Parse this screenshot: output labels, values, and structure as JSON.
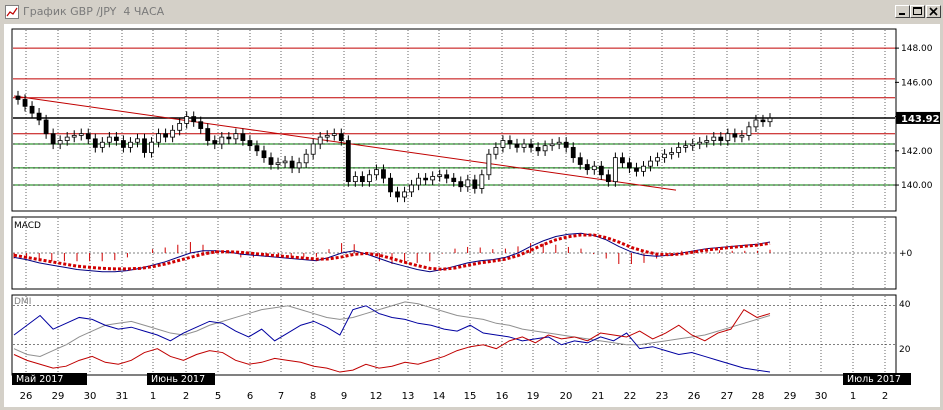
{
  "window": {
    "title": "График GBP /JPY  4 ЧАСА",
    "icons": {
      "app": "chart-app-icon",
      "minimize": "minimize-icon",
      "maximize": "maximize-icon",
      "close": "close-icon"
    }
  },
  "price_panel": {
    "price_labels": [
      "148.00",
      "146.00",
      "144.00",
      "142.00",
      "140.00"
    ],
    "current_price": "143.92",
    "colors": {
      "up": "#000000",
      "down": "#000000",
      "trendline": "#c00000",
      "h_red": "#c00000",
      "h_green": "#008000",
      "current_line": "#000000"
    }
  },
  "macd_panel": {
    "label": "MACD",
    "zero_label": "+0",
    "colors": {
      "line": "#000080",
      "signal": "#d00000",
      "hist": "#d00000"
    }
  },
  "dmi_panel": {
    "label": "DMI",
    "levels": [
      "40",
      "20"
    ],
    "colors": {
      "plus": "#c00000",
      "minus": "#0000a0",
      "adx": "#909090"
    }
  },
  "axis": {
    "dates": [
      "26",
      "29",
      "30",
      "31",
      "1",
      "2",
      "5",
      "6",
      "7",
      "8",
      "9",
      "12",
      "13",
      "14",
      "15",
      "16",
      "19",
      "20",
      "21",
      "22",
      "23",
      "26",
      "27",
      "28",
      "29",
      "30",
      "1",
      "2"
    ],
    "month_labels": [
      "Май 2017",
      "Июнь 2017",
      "Июль 2017"
    ]
  },
  "chart_data": {
    "type": "candlestick",
    "title": "График GBP /JPY  4 ЧАСА",
    "ylim": [
      138.6,
      149.0
    ],
    "yticks": [
      148,
      146,
      144,
      142,
      140
    ],
    "horizontal_levels_red": [
      148.0,
      146.2,
      145.1,
      143.0
    ],
    "horizontal_levels_green": [
      142.4,
      141.0,
      140.0
    ],
    "trendline": {
      "from_date": "26",
      "from": 145.2,
      "to_date": "23",
      "to": 139.7
    },
    "last_price": 143.92,
    "close": [
      145.0,
      144.6,
      144.2,
      143.8,
      143.0,
      142.4,
      142.6,
      142.8,
      142.9,
      143.0,
      142.7,
      142.2,
      142.5,
      142.8,
      142.6,
      142.2,
      142.5,
      142.7,
      141.9,
      142.5,
      143.0,
      142.8,
      143.2,
      143.6,
      144.0,
      143.7,
      143.3,
      142.6,
      142.4,
      142.8,
      142.7,
      143.0,
      142.6,
      142.3,
      142.0,
      141.6,
      141.2,
      141.3,
      141.4,
      141.0,
      141.3,
      141.8,
      142.4,
      142.8,
      142.9,
      143.0,
      142.6,
      140.2,
      140.5,
      140.2,
      140.6,
      140.9,
      140.4,
      139.6,
      139.3,
      139.6,
      140.0,
      140.4,
      140.3,
      140.5,
      140.6,
      140.4,
      140.2,
      139.9,
      140.3,
      139.8,
      140.6,
      141.8,
      142.2,
      142.6,
      142.4,
      142.2,
      142.4,
      142.2,
      142.0,
      142.3,
      142.4,
      142.5,
      142.2,
      141.6,
      141.2,
      140.9,
      141.1,
      140.6,
      140.2,
      141.6,
      141.3,
      141.0,
      140.8,
      141.1,
      141.4,
      141.6,
      141.8,
      141.9,
      142.2,
      142.3,
      142.4,
      142.5,
      142.6,
      142.8,
      142.6,
      143.0,
      142.8,
      142.9,
      143.4,
      143.8,
      143.7,
      143.9
    ],
    "open_prev": true,
    "macd": [
      -0.2,
      -0.3,
      -0.45,
      -0.55,
      -0.65,
      -0.75,
      -0.8,
      -0.85,
      -0.85,
      -0.8,
      -0.7,
      -0.55,
      -0.4,
      -0.2,
      0.0,
      0.1,
      0.1,
      0.05,
      -0.05,
      -0.1,
      -0.15,
      -0.2,
      -0.25,
      -0.3,
      -0.35,
      -0.2,
      0.0,
      0.1,
      -0.05,
      -0.25,
      -0.45,
      -0.6,
      -0.75,
      -0.85,
      -0.75,
      -0.6,
      -0.45,
      -0.35,
      -0.3,
      -0.2,
      0.0,
      0.3,
      0.55,
      0.75,
      0.85,
      0.9,
      0.8,
      0.6,
      0.3,
      0.05,
      -0.1,
      -0.15,
      -0.1,
      0.0,
      0.1,
      0.2,
      0.25,
      0.3,
      0.35,
      0.4,
      0.5
    ],
    "macd_signal": [
      -0.1,
      -0.2,
      -0.3,
      -0.4,
      -0.5,
      -0.6,
      -0.65,
      -0.7,
      -0.72,
      -0.72,
      -0.7,
      -0.62,
      -0.5,
      -0.35,
      -0.2,
      -0.05,
      0.05,
      0.06,
      0.03,
      -0.02,
      -0.08,
      -0.13,
      -0.18,
      -0.23,
      -0.28,
      -0.27,
      -0.18,
      -0.06,
      -0.02,
      -0.1,
      -0.25,
      -0.42,
      -0.57,
      -0.7,
      -0.74,
      -0.68,
      -0.56,
      -0.45,
      -0.37,
      -0.28,
      -0.12,
      0.12,
      0.38,
      0.6,
      0.74,
      0.82,
      0.82,
      0.7,
      0.5,
      0.25,
      0.08,
      -0.05,
      -0.08,
      -0.04,
      0.05,
      0.14,
      0.2,
      0.26,
      0.31,
      0.36,
      0.44
    ],
    "dmi_plus": [
      15,
      12,
      10,
      8,
      9,
      12,
      14,
      11,
      10,
      12,
      16,
      18,
      14,
      12,
      15,
      17,
      16,
      12,
      10,
      11,
      13,
      12,
      11,
      9,
      8,
      6,
      7,
      10,
      8,
      9,
      11,
      10,
      12,
      14,
      17,
      19,
      20,
      18,
      22,
      24,
      21,
      25,
      23,
      24,
      22,
      26,
      25,
      24,
      27,
      23,
      26,
      30,
      25,
      22,
      26,
      28,
      38,
      34,
      36
    ],
    "dmi_minus": [
      25,
      30,
      35,
      28,
      31,
      34,
      33,
      30,
      28,
      29,
      27,
      25,
      22,
      26,
      29,
      32,
      31,
      27,
      24,
      28,
      22,
      26,
      30,
      32,
      29,
      25,
      38,
      40,
      36,
      34,
      33,
      31,
      30,
      28,
      27,
      30,
      26,
      25,
      24,
      22,
      23,
      24,
      20,
      22,
      21,
      24,
      22,
      26,
      18,
      19,
      17,
      15,
      16,
      14,
      12,
      10,
      8,
      7,
      6
    ],
    "dmi_adx": [
      18,
      15,
      14,
      17,
      20,
      24,
      27,
      30,
      31,
      32,
      30,
      28,
      26,
      25,
      27,
      30,
      32,
      34,
      36,
      38,
      39,
      40,
      38,
      36,
      34,
      33,
      34,
      36,
      38,
      40,
      42,
      41,
      39,
      37,
      35,
      34,
      33,
      31,
      30,
      28,
      27,
      26,
      25,
      24,
      23,
      22,
      21,
      20,
      20,
      21,
      22,
      23,
      24,
      25,
      27,
      29,
      31,
      33,
      35
    ]
  }
}
